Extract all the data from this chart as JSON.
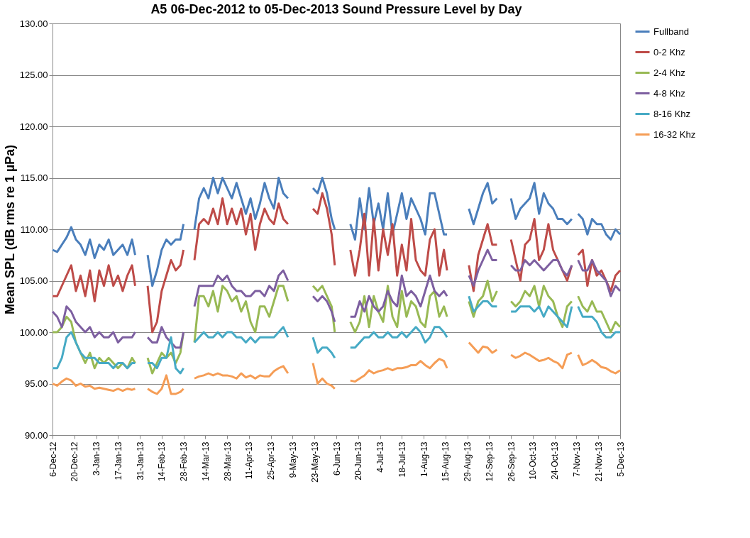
{
  "chart_data": {
    "type": "line",
    "title": "A5 06-Dec-2012 to 05-Dec-2013 Sound Pressure Level by Day",
    "ylabel": "Mean SPL (dB rms re 1 µPa)",
    "x": [
      "2012-12-06",
      "2012-12-09",
      "2012-12-12",
      "2012-12-15",
      "2012-12-18",
      "2012-12-21",
      "2012-12-24",
      "2012-12-27",
      "2012-12-30",
      "2013-01-02",
      "2013-01-05",
      "2013-01-08",
      "2013-01-11",
      "2013-01-14",
      "2013-01-17",
      "2013-01-20",
      "2013-01-23",
      "2013-01-26",
      "2013-01-28",
      "2013-02-01",
      "2013-02-05",
      "2013-02-08",
      "2013-02-11",
      "2013-02-14",
      "2013-02-17",
      "2013-02-20",
      "2013-02-23",
      "2013-02-26",
      "2013-02-28",
      "2013-03-03",
      "2013-03-07",
      "2013-03-10",
      "2013-03-13",
      "2013-03-16",
      "2013-03-19",
      "2013-03-22",
      "2013-03-25",
      "2013-03-28",
      "2013-03-31",
      "2013-04-03",
      "2013-04-06",
      "2013-04-09",
      "2013-04-12",
      "2013-04-15",
      "2013-04-18",
      "2013-04-21",
      "2013-04-24",
      "2013-04-27",
      "2013-04-30",
      "2013-05-03",
      "2013-05-06",
      "2013-05-14",
      "2013-05-22",
      "2013-05-25",
      "2013-05-28",
      "2013-05-31",
      "2013-06-03",
      "2013-06-05",
      "2013-06-10",
      "2013-06-15",
      "2013-06-18",
      "2013-06-21",
      "2013-06-24",
      "2013-06-27",
      "2013-06-30",
      "2013-07-03",
      "2013-07-06",
      "2013-07-09",
      "2013-07-12",
      "2013-07-15",
      "2013-07-18",
      "2013-07-21",
      "2013-07-24",
      "2013-07-27",
      "2013-07-30",
      "2013-08-02",
      "2013-08-05",
      "2013-08-08",
      "2013-08-11",
      "2013-08-14",
      "2013-08-16",
      "2013-08-23",
      "2013-08-30",
      "2013-09-02",
      "2013-09-05",
      "2013-09-08",
      "2013-09-11",
      "2013-09-14",
      "2013-09-17",
      "2013-09-22",
      "2013-09-26",
      "2013-09-29",
      "2013-10-02",
      "2013-10-05",
      "2013-10-08",
      "2013-10-11",
      "2013-10-14",
      "2013-10-17",
      "2013-10-20",
      "2013-10-23",
      "2013-10-26",
      "2013-10-29",
      "2013-11-01",
      "2013-11-04",
      "2013-11-06",
      "2013-11-08",
      "2013-11-11",
      "2013-11-14",
      "2013-11-17",
      "2013-11-20",
      "2013-11-23",
      "2013-11-26",
      "2013-11-29",
      "2013-12-02",
      "2013-12-05"
    ],
    "series": [
      {
        "name": "Fullband",
        "color": "#4a7ebb",
        "values": [
          108.0,
          107.8,
          108.5,
          109.2,
          110.2,
          109.0,
          108.5,
          107.5,
          109.0,
          107.2,
          108.5,
          108.0,
          109.0,
          107.5,
          108.0,
          108.5,
          107.5,
          109.0,
          107.5,
          null,
          107.5,
          104.5,
          106.0,
          108.0,
          109.0,
          108.5,
          109.0,
          109.0,
          110.5,
          null,
          110.0,
          113.0,
          114.0,
          113.0,
          115.0,
          113.5,
          115.0,
          114.0,
          113.0,
          114.5,
          113.0,
          111.5,
          113.0,
          111.0,
          112.5,
          114.5,
          113.0,
          112.0,
          115.0,
          113.5,
          113.0,
          null,
          114.0,
          113.5,
          115.0,
          113.5,
          111.0,
          110.0,
          null,
          110.5,
          109.0,
          113.0,
          110.0,
          114.0,
          110.5,
          112.5,
          110.0,
          113.5,
          109.5,
          111.5,
          113.5,
          111.0,
          113.0,
          112.0,
          111.0,
          109.5,
          113.5,
          113.5,
          111.5,
          109.5,
          109.5,
          null,
          112.0,
          110.5,
          112.0,
          113.5,
          114.5,
          112.5,
          113.0,
          null,
          113.0,
          111.0,
          112.0,
          112.5,
          113.0,
          114.5,
          111.5,
          113.5,
          112.5,
          112.0,
          111.0,
          111.0,
          110.5,
          111.0,
          null,
          111.5,
          111.0,
          109.5,
          111.0,
          110.5,
          110.5,
          109.5,
          109.0,
          110.0,
          109.5
        ]
      },
      {
        "name": "0-2 Khz",
        "color": "#be4b48",
        "values": [
          103.5,
          103.5,
          104.5,
          105.5,
          106.5,
          104.0,
          105.5,
          103.5,
          106.0,
          103.0,
          106.0,
          104.5,
          106.5,
          104.5,
          105.5,
          104.0,
          105.5,
          106.5,
          104.5,
          null,
          104.5,
          100.0,
          101.0,
          104.0,
          105.5,
          107.0,
          106.0,
          106.5,
          108.0,
          null,
          107.0,
          110.5,
          111.0,
          110.5,
          112.0,
          110.5,
          113.0,
          110.5,
          112.0,
          110.5,
          112.0,
          109.5,
          111.5,
          108.0,
          110.5,
          112.0,
          111.0,
          110.5,
          112.5,
          111.0,
          110.5,
          null,
          112.0,
          111.5,
          113.5,
          112.0,
          109.5,
          106.5,
          null,
          108.0,
          105.5,
          108.0,
          111.5,
          105.5,
          111.0,
          106.0,
          110.0,
          107.5,
          110.5,
          105.5,
          108.5,
          106.0,
          111.0,
          107.0,
          106.0,
          105.5,
          109.0,
          110.0,
          105.5,
          108.0,
          106.0,
          null,
          106.5,
          104.0,
          107.5,
          109.0,
          110.5,
          108.5,
          108.5,
          null,
          109.0,
          107.0,
          105.0,
          108.5,
          109.0,
          111.0,
          107.0,
          108.0,
          110.5,
          108.0,
          107.0,
          106.0,
          105.0,
          106.5,
          null,
          107.5,
          108.0,
          104.5,
          107.0,
          105.5,
          106.0,
          105.0,
          104.0,
          105.5,
          106.0
        ]
      },
      {
        "name": "2-4 Khz",
        "color": "#98b954",
        "values": [
          100.0,
          100.0,
          100.5,
          101.5,
          101.0,
          99.0,
          98.0,
          97.0,
          98.0,
          96.5,
          97.5,
          97.0,
          97.5,
          97.0,
          96.5,
          97.0,
          96.5,
          97.5,
          97.0,
          null,
          97.5,
          96.0,
          97.0,
          98.0,
          97.5,
          98.0,
          97.0,
          98.0,
          100.0,
          null,
          99.0,
          103.5,
          103.5,
          102.5,
          104.0,
          102.0,
          104.5,
          104.0,
          103.0,
          103.5,
          102.0,
          103.0,
          101.0,
          100.0,
          102.5,
          102.5,
          101.5,
          103.0,
          104.5,
          104.5,
          103.0,
          null,
          104.5,
          104.0,
          104.5,
          103.5,
          102.5,
          100.0,
          null,
          101.0,
          100.0,
          101.0,
          103.5,
          100.5,
          103.5,
          102.0,
          101.0,
          104.5,
          101.5,
          100.5,
          104.0,
          101.5,
          103.0,
          102.5,
          101.0,
          100.5,
          103.5,
          104.0,
          101.5,
          102.5,
          101.5,
          null,
          103.0,
          101.5,
          103.0,
          103.5,
          105.0,
          103.0,
          104.0,
          null,
          103.0,
          102.5,
          103.0,
          104.0,
          103.5,
          104.5,
          102.5,
          104.5,
          103.5,
          103.0,
          101.5,
          100.5,
          102.5,
          103.0,
          null,
          103.5,
          102.5,
          102.0,
          103.0,
          102.0,
          102.0,
          101.0,
          100.0,
          101.0,
          100.5
        ]
      },
      {
        "name": "4-8 Khz",
        "color": "#7d5fa0",
        "values": [
          102.0,
          101.5,
          100.5,
          102.5,
          102.0,
          101.0,
          100.5,
          100.0,
          100.5,
          99.5,
          100.0,
          99.5,
          99.5,
          100.0,
          99.0,
          99.5,
          99.5,
          99.5,
          100.0,
          null,
          99.5,
          99.0,
          99.0,
          100.5,
          99.5,
          99.0,
          98.5,
          98.5,
          100.0,
          null,
          102.5,
          104.5,
          104.5,
          104.5,
          104.5,
          105.5,
          105.0,
          105.5,
          104.5,
          104.0,
          104.0,
          103.5,
          103.5,
          104.0,
          104.0,
          103.5,
          104.5,
          104.0,
          105.5,
          106.0,
          105.0,
          null,
          103.5,
          103.0,
          103.5,
          103.0,
          102.0,
          101.0,
          null,
          101.5,
          101.5,
          103.0,
          102.0,
          103.5,
          102.5,
          102.0,
          102.5,
          104.0,
          103.0,
          102.5,
          105.5,
          103.5,
          104.0,
          103.5,
          102.5,
          104.0,
          105.5,
          104.0,
          103.5,
          104.0,
          103.5,
          null,
          105.5,
          104.5,
          106.0,
          107.0,
          108.0,
          107.0,
          107.0,
          null,
          106.5,
          106.0,
          106.0,
          107.0,
          106.5,
          107.0,
          106.5,
          106.0,
          106.5,
          107.0,
          107.0,
          106.0,
          105.5,
          106.5,
          null,
          107.0,
          106.0,
          106.0,
          107.0,
          106.0,
          105.5,
          105.0,
          103.5,
          104.5,
          104.0
        ]
      },
      {
        "name": "8-16 Khz",
        "color": "#46aac5",
        "values": [
          96.5,
          96.5,
          97.5,
          99.5,
          100.0,
          99.0,
          98.0,
          97.5,
          97.5,
          97.5,
          97.0,
          97.0,
          97.0,
          96.5,
          97.0,
          97.0,
          96.5,
          97.0,
          97.0,
          null,
          97.0,
          97.0,
          96.5,
          97.5,
          97.5,
          99.5,
          96.5,
          96.0,
          96.5,
          null,
          99.0,
          99.5,
          100.0,
          99.5,
          99.5,
          100.0,
          99.5,
          100.0,
          100.0,
          99.5,
          99.5,
          99.0,
          99.5,
          99.0,
          99.5,
          99.5,
          99.5,
          99.5,
          100.0,
          100.5,
          99.5,
          null,
          99.5,
          98.0,
          98.5,
          98.5,
          98.0,
          97.5,
          null,
          98.5,
          98.5,
          99.0,
          99.5,
          99.5,
          100.0,
          99.5,
          99.5,
          100.0,
          99.5,
          99.5,
          100.0,
          99.5,
          100.0,
          100.5,
          100.0,
          99.0,
          99.5,
          100.5,
          100.5,
          100.0,
          99.5,
          null,
          103.5,
          102.0,
          102.5,
          103.0,
          103.0,
          102.5,
          102.5,
          null,
          102.0,
          102.0,
          102.5,
          102.5,
          102.5,
          102.0,
          102.5,
          101.5,
          102.5,
          102.0,
          101.5,
          101.0,
          100.5,
          102.5,
          null,
          102.5,
          101.5,
          101.5,
          101.5,
          101.0,
          100.0,
          99.5,
          99.5,
          100.0,
          100.0
        ]
      },
      {
        "name": "16-32 Khz",
        "color": "#f59d56",
        "values": [
          95.0,
          94.8,
          95.2,
          95.5,
          95.3,
          94.8,
          95.0,
          94.7,
          94.8,
          94.5,
          94.6,
          94.5,
          94.4,
          94.3,
          94.5,
          94.3,
          94.5,
          94.4,
          94.5,
          null,
          94.5,
          94.2,
          94.0,
          94.5,
          95.8,
          94.0,
          94.0,
          94.2,
          94.5,
          null,
          95.5,
          95.7,
          95.8,
          96.0,
          95.8,
          96.0,
          95.8,
          95.8,
          95.7,
          95.5,
          96.0,
          95.6,
          95.8,
          95.5,
          95.8,
          95.7,
          95.7,
          96.2,
          96.5,
          96.7,
          96.0,
          null,
          97.0,
          95.0,
          95.5,
          95.0,
          94.8,
          94.5,
          null,
          95.3,
          95.2,
          95.5,
          95.8,
          96.3,
          96.0,
          96.2,
          96.3,
          96.5,
          96.3,
          96.5,
          96.5,
          96.6,
          96.8,
          96.8,
          97.2,
          96.8,
          96.5,
          97.0,
          97.4,
          97.2,
          96.5,
          null,
          99.0,
          98.5,
          98.0,
          98.6,
          98.5,
          98.0,
          98.3,
          null,
          97.8,
          97.5,
          97.7,
          98.0,
          97.8,
          97.5,
          97.2,
          97.3,
          97.5,
          97.2,
          97.0,
          96.5,
          97.8,
          98.0,
          null,
          97.8,
          96.8,
          97.0,
          97.3,
          97.0,
          96.6,
          96.5,
          96.2,
          96.0,
          96.3
        ]
      }
    ],
    "xlim": [
      "2012-12-06",
      "2013-12-05"
    ],
    "xticks": [
      {
        "value": "2012-12-06",
        "label": "6-Dec-12"
      },
      {
        "value": "2012-12-20",
        "label": "20-Dec-12"
      },
      {
        "value": "2013-01-03",
        "label": "3-Jan-13"
      },
      {
        "value": "2013-01-17",
        "label": "17-Jan-13"
      },
      {
        "value": "2013-01-31",
        "label": "31-Jan-13"
      },
      {
        "value": "2013-02-14",
        "label": "14-Feb-13"
      },
      {
        "value": "2013-02-28",
        "label": "28-Feb-13"
      },
      {
        "value": "2013-03-14",
        "label": "14-Mar-13"
      },
      {
        "value": "2013-03-28",
        "label": "28-Mar-13"
      },
      {
        "value": "2013-04-11",
        "label": "11-Apr-13"
      },
      {
        "value": "2013-04-25",
        "label": "25-Apr-13"
      },
      {
        "value": "2013-05-09",
        "label": "9-May-13"
      },
      {
        "value": "2013-05-23",
        "label": "23-May-13"
      },
      {
        "value": "2013-06-06",
        "label": "6-Jun-13"
      },
      {
        "value": "2013-06-20",
        "label": "20-Jun-13"
      },
      {
        "value": "2013-07-04",
        "label": "4-Jul-13"
      },
      {
        "value": "2013-07-18",
        "label": "18-Jul-13"
      },
      {
        "value": "2013-08-01",
        "label": "1-Aug-13"
      },
      {
        "value": "2013-08-15",
        "label": "15-Aug-13"
      },
      {
        "value": "2013-08-29",
        "label": "29-Aug-13"
      },
      {
        "value": "2013-09-12",
        "label": "12-Sep-13"
      },
      {
        "value": "2013-09-26",
        "label": "26-Sep-13"
      },
      {
        "value": "2013-10-10",
        "label": "10-Oct-13"
      },
      {
        "value": "2013-10-24",
        "label": "24-Oct-13"
      },
      {
        "value": "2013-11-07",
        "label": "7-Nov-13"
      },
      {
        "value": "2013-11-21",
        "label": "21-Nov-13"
      },
      {
        "value": "2013-12-05",
        "label": "5-Dec-13"
      }
    ],
    "ylim": [
      90,
      130
    ],
    "yticks": [
      {
        "value": 90,
        "label": "90.00"
      },
      {
        "value": 95,
        "label": "95.00"
      },
      {
        "value": 100,
        "label": "100.00"
      },
      {
        "value": 105,
        "label": "105.00"
      },
      {
        "value": 110,
        "label": "110.00"
      },
      {
        "value": 115,
        "label": "115.00"
      },
      {
        "value": 120,
        "label": "120.00"
      },
      {
        "value": 125,
        "label": "125.00"
      },
      {
        "value": 130,
        "label": "130.00"
      }
    ],
    "grid": "y",
    "legend": "right",
    "marker": "none",
    "line_style": "solid"
  }
}
